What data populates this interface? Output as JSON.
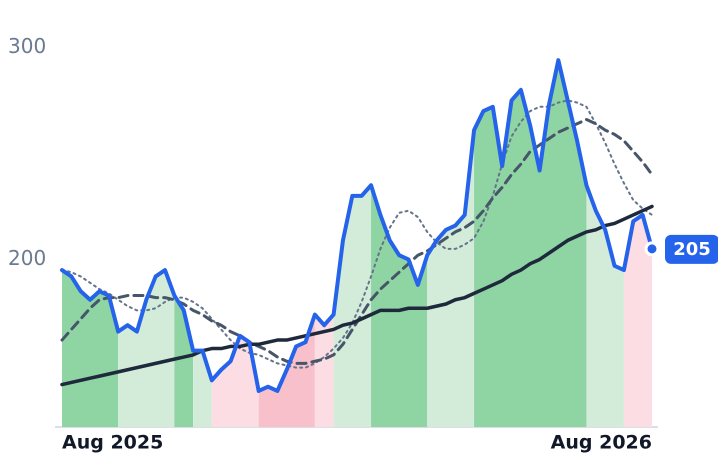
{
  "chart_data": {
    "type": "line",
    "categories": [
      "Aug 2025",
      null,
      null,
      null,
      null,
      null,
      null,
      null,
      null,
      null,
      null,
      null,
      null,
      null,
      null,
      null,
      null,
      null,
      null,
      null,
      null,
      null,
      null,
      null,
      null,
      null,
      null,
      null,
      null,
      null,
      null,
      null,
      null,
      null,
      null,
      null,
      null,
      null,
      null,
      null,
      null,
      null,
      null,
      null,
      null,
      null,
      null,
      null,
      null,
      null,
      null,
      null,
      null,
      null,
      null,
      null,
      null,
      null,
      null,
      null,
      null,
      null,
      null,
      "Aug 2026"
    ],
    "series": [
      {
        "color": "#2563eb",
        "dash": "solid",
        "width": 4,
        "last_value_label": true,
        "values": [
          195,
          192,
          185,
          181,
          185,
          183,
          166,
          169,
          166,
          181,
          192,
          195,
          183,
          176,
          157,
          157,
          143,
          148,
          152,
          164,
          161,
          138,
          140,
          138,
          148,
          159,
          161,
          174,
          169,
          174,
          209,
          230,
          230,
          235,
          221,
          209,
          202,
          200,
          188,
          202,
          209,
          214,
          216,
          221,
          261,
          270,
          272,
          244,
          275,
          280,
          263,
          242,
          273,
          294,
          275,
          256,
          235,
          223,
          214,
          197,
          195,
          218,
          221,
          205
        ]
      },
      {
        "color": "#64748b",
        "dash": "dotted",
        "width": 2,
        "values": [
          195,
          194,
          192,
          189,
          186,
          184,
          181,
          178,
          176,
          176,
          177,
          180,
          182,
          182,
          180,
          177,
          172,
          167,
          162,
          158,
          156,
          155,
          153,
          151,
          150,
          149,
          149,
          151,
          154,
          158,
          163,
          170,
          180,
          192,
          205,
          215,
          222,
          223,
          220,
          213,
          208,
          205,
          205,
          207,
          210,
          218,
          230,
          245,
          258,
          265,
          270,
          272,
          272,
          274,
          275,
          274,
          272,
          264,
          255,
          245,
          236,
          228,
          224,
          221
        ]
      },
      {
        "color": "#475569",
        "dash": "dashed",
        "width": 3,
        "values": [
          162,
          167,
          172,
          177,
          181,
          182,
          182,
          183,
          183,
          183,
          182,
          182,
          181,
          179,
          176,
          174,
          171,
          169,
          166,
          164,
          161,
          159,
          157,
          154,
          152,
          151,
          151,
          152,
          153,
          155,
          160,
          167,
          174,
          181,
          186,
          190,
          194,
          198,
          202,
          204,
          207,
          210,
          213,
          215,
          218,
          223,
          229,
          234,
          240,
          245,
          251,
          254,
          257,
          260,
          262,
          264,
          266,
          264,
          261,
          259,
          256,
          251,
          246,
          240
        ]
      },
      {
        "color": "#1e293b",
        "dash": "solid",
        "width": 3.5,
        "values": [
          141,
          142,
          143,
          144,
          145,
          146,
          147,
          148,
          149,
          150,
          151,
          152,
          153,
          154,
          155,
          157,
          158,
          158,
          159,
          159,
          160,
          160,
          161,
          162,
          162,
          163,
          164,
          165,
          166,
          167,
          169,
          170,
          172,
          174,
          176,
          176,
          176,
          177,
          177,
          177,
          178,
          179,
          181,
          182,
          184,
          186,
          188,
          190,
          193,
          195,
          198,
          200,
          203,
          206,
          209,
          211,
          213,
          214,
          216,
          217,
          219,
          221,
          223,
          225
        ]
      }
    ],
    "bands": [
      {
        "start": 0,
        "end": 6,
        "color": "#8fd4a3"
      },
      {
        "start": 6,
        "end": 12,
        "color": "#d3ecda"
      },
      {
        "start": 12,
        "end": 14,
        "color": "#8fd4a3"
      },
      {
        "start": 14,
        "end": 16,
        "color": "#d3ecda"
      },
      {
        "start": 16,
        "end": 21,
        "color": "#fcdde3"
      },
      {
        "start": 21,
        "end": 27,
        "color": "#f8c0cb"
      },
      {
        "start": 27,
        "end": 29,
        "color": "#fcdde3"
      },
      {
        "start": 29,
        "end": 33,
        "color": "#d3ecda"
      },
      {
        "start": 33,
        "end": 39,
        "color": "#8fd4a3"
      },
      {
        "start": 39,
        "end": 44,
        "color": "#d3ecda"
      },
      {
        "start": 44,
        "end": 56,
        "color": "#8fd4a3"
      },
      {
        "start": 56,
        "end": 60,
        "color": "#d3ecda"
      },
      {
        "start": 60,
        "end": 63,
        "color": "#fcdde3"
      }
    ],
    "ylim": [
      121,
      303.5
    ],
    "yticks": [
      200,
      300
    ]
  }
}
